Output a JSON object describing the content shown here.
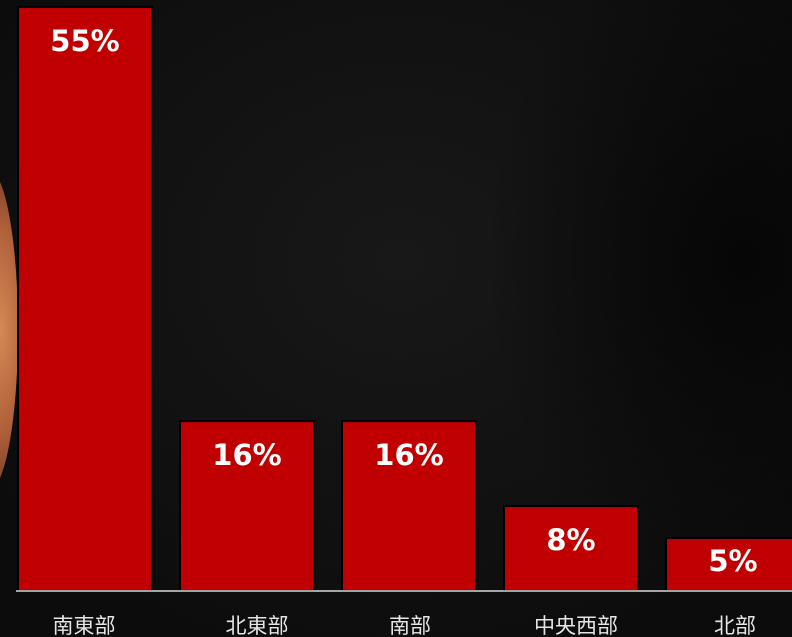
{
  "chart_data": {
    "type": "bar",
    "categories": [
      "南東部",
      "北東部",
      "南部",
      "中央西部",
      "北部"
    ],
    "values": [
      55,
      16,
      16,
      8,
      5
    ],
    "data_labels": [
      "55%",
      "16%",
      "16%",
      "8%",
      "5%"
    ],
    "unit": "%",
    "title": "",
    "xlabel": "",
    "ylabel": "",
    "ylim": [
      0,
      55
    ],
    "grid": false,
    "legend": "none",
    "bar_color": "#c00000",
    "bar_outline_color": "#000000",
    "label_color": "#ffffff",
    "axis_color": "#d9d9d9",
    "background_color": "#111111"
  }
}
